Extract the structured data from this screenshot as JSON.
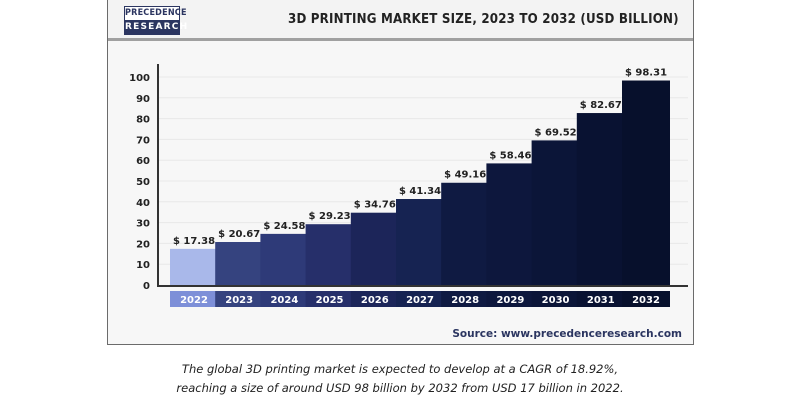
{
  "header": {
    "logo_line1": "PRECEDENCE",
    "logo_line2": "RESEARCH",
    "title": "3D PRINTING MARKET SIZE, 2023 TO 2032 (USD BILLION)"
  },
  "source": "Source: www.precedenceresearch.com",
  "caption": {
    "line1": "The global 3D printing market is expected to develop at a CAGR of 18.92%,",
    "line2": "reaching a size of around USD 98 billion by 2032 from USD 17 billion in 2022."
  },
  "colors": {
    "bars": [
      "#a9b8ea",
      "#35437f",
      "#2e3a78",
      "#262f6a",
      "#1c2559",
      "#162352",
      "#0f1a42",
      "#0d173d",
      "#0b1538",
      "#091232",
      "#07102c"
    ],
    "xlabel_boxes": [
      "#7d8fd8",
      "#35437f",
      "#2e3a78",
      "#262f6a",
      "#1c2559",
      "#162352",
      "#0f1a42",
      "#0d173d",
      "#0b1538",
      "#091232",
      "#07102c"
    ],
    "grid": "#e8e8e8",
    "axis": "#333333"
  },
  "chart_data": {
    "type": "bar",
    "title": "3D PRINTING MARKET SIZE, 2023 TO 2032 (USD BILLION)",
    "xlabel": "",
    "ylabel": "",
    "categories": [
      "2022",
      "2023",
      "2024",
      "2025",
      "2026",
      "2027",
      "2028",
      "2029",
      "2030",
      "2031",
      "2032"
    ],
    "values": [
      17.38,
      20.67,
      24.58,
      29.23,
      34.76,
      41.34,
      49.16,
      58.46,
      69.52,
      82.67,
      98.31
    ],
    "data_labels": [
      "$ 17.38",
      "$ 20.67",
      "$ 24.58",
      "$ 29.23",
      "$ 34.76",
      "$ 41.34",
      "$ 49.16",
      "$ 58.46",
      "$ 69.52",
      "$ 82.67",
      "$ 98.31"
    ],
    "ylim": [
      0,
      100
    ],
    "yticks": [
      0,
      10,
      20,
      30,
      40,
      50,
      60,
      70,
      80,
      90,
      100
    ],
    "grid": true,
    "legend": "none"
  }
}
